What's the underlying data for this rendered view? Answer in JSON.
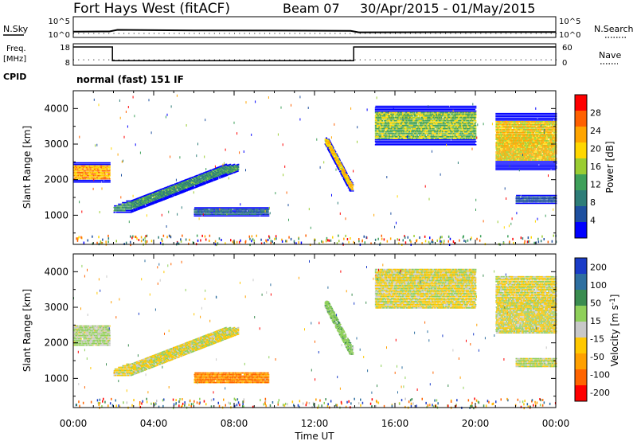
{
  "header": {
    "radar": "Fort Hays West (fitACF)",
    "beam": "Beam 07",
    "date_range": "30/Apr/2015 - 01/May/2015"
  },
  "colors": {
    "power_scale": [
      "#0000ff",
      "#1e50a0",
      "#2e7d78",
      "#3ea05a",
      "#9acd32",
      "#ffd700",
      "#ffa500",
      "#ff6000",
      "#ff0000"
    ],
    "velocity_scale": [
      "#1a3cc8",
      "#2e6fa0",
      "#3a8c50",
      "#8fd05a",
      "#c8c8c8",
      "#ffc800",
      "#ffa000",
      "#ff6400",
      "#ff0000"
    ]
  },
  "chart_data": [
    {
      "type": "line",
      "panel": "noise",
      "ylabel": "N.Sky",
      "right_label": "N.Search",
      "left_ticks": [
        "10^5",
        "10^0"
      ],
      "right_ticks": [
        "10^5",
        "10^0"
      ],
      "x_hours": [
        0,
        1.8,
        2.2,
        6,
        10,
        13.8,
        14.2,
        18,
        24
      ],
      "nsky_log": [
        1.2,
        1.25,
        1.7,
        1.55,
        1.5,
        1.4,
        1.0,
        1.05,
        1.1
      ]
    },
    {
      "type": "line",
      "panel": "frequency",
      "ylabel": "Freq. [MHz]",
      "right_label": "Nave",
      "left_ticks": [
        "18",
        "8"
      ],
      "right_ticks": [
        "60",
        "0"
      ],
      "freq_x_hours": [
        0,
        1.95,
        1.95,
        13.95,
        13.95,
        24
      ],
      "freq_mhz": [
        18,
        18,
        10.5,
        10.5,
        18,
        18
      ],
      "nave": 18
    },
    {
      "type": "table",
      "panel": "cpid",
      "label": "CPID",
      "value": "normal (fast) 151 IF"
    },
    {
      "type": "heatmap",
      "panel": "power",
      "ylabel": "Slant Range [km]",
      "colorbar_label": "Power [dB]",
      "colorbar_ticks": [
        "4",
        "8",
        "12",
        "16",
        "20",
        "24",
        "28"
      ],
      "y_ticks": [
        "1000",
        "2000",
        "3000",
        "4000"
      ],
      "ylim": [
        180,
        4500
      ],
      "xlim": [
        0,
        24
      ],
      "bands": [
        {
          "x0": 0.0,
          "x1": 1.8,
          "y0": 1950,
          "y1": 2500,
          "level": 6
        },
        {
          "x0": 2.0,
          "x1": 8.2,
          "y0": 1100,
          "y1": 2450,
          "level": 3
        },
        {
          "x0": 6.0,
          "x1": 9.7,
          "y0": 1000,
          "y1": 1250,
          "level": 1
        },
        {
          "x0": 12.5,
          "x1": 13.9,
          "y0": 1700,
          "y1": 3200,
          "level": 5
        },
        {
          "x0": 15.0,
          "x1": 20.0,
          "y0": 3000,
          "y1": 4100,
          "level": 4
        },
        {
          "x0": 21.0,
          "x1": 24.0,
          "y0": 2300,
          "y1": 3900,
          "level": 5
        },
        {
          "x0": 22.0,
          "x1": 24.0,
          "y0": 1350,
          "y1": 1600,
          "level": 1
        }
      ]
    },
    {
      "type": "heatmap",
      "panel": "velocity",
      "ylabel": "Slant Range [km]",
      "xlabel": "Time UT",
      "colorbar_label": "Velocity [m s^-1]",
      "colorbar_ticks": [
        "200",
        "100",
        "50",
        "15",
        "-15",
        "-50",
        "-100",
        "-200"
      ],
      "y_ticks": [
        "1000",
        "2000",
        "3000",
        "4000"
      ],
      "x_ticks": [
        "00:00",
        "04:00",
        "08:00",
        "12:00",
        "16:00",
        "20:00",
        "00:00"
      ],
      "ylim": [
        180,
        4500
      ],
      "xlim": [
        0,
        24
      ],
      "bands": [
        {
          "x0": 0.0,
          "x1": 1.8,
          "y0": 1950,
          "y1": 2500,
          "level": 4
        },
        {
          "x0": 2.0,
          "x1": 8.2,
          "y0": 1100,
          "y1": 2450,
          "level": 4
        },
        {
          "x0": 6.0,
          "x1": 9.7,
          "y0": 900,
          "y1": 1200,
          "level": 6
        },
        {
          "x0": 12.5,
          "x1": 13.9,
          "y0": 1700,
          "y1": 3200,
          "level": 3
        },
        {
          "x0": 15.0,
          "x1": 20.0,
          "y0": 3000,
          "y1": 4100,
          "level": 4
        },
        {
          "x0": 21.0,
          "x1": 24.0,
          "y0": 2300,
          "y1": 3900,
          "level": 4
        },
        {
          "x0": 22.0,
          "x1": 24.0,
          "y0": 1350,
          "y1": 1600,
          "level": 4
        }
      ]
    }
  ]
}
